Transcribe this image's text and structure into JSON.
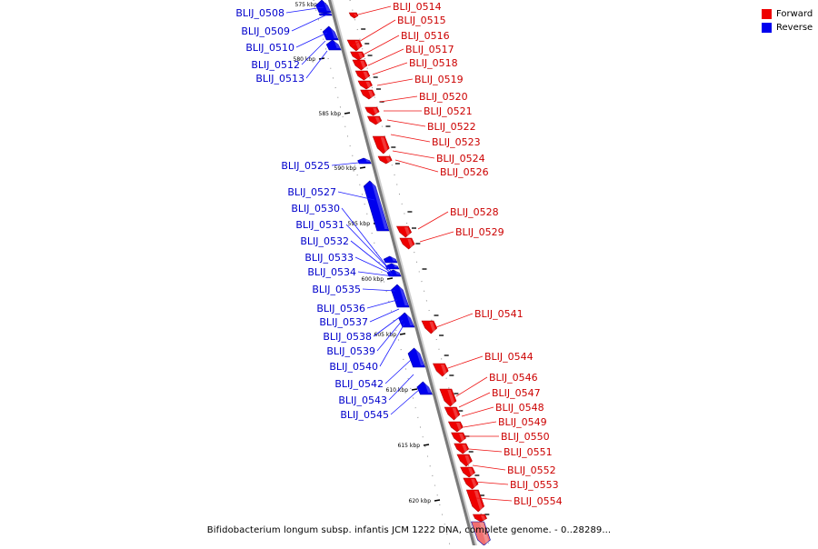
{
  "caption": "Bifidobacterium longum subsp. infantis JCM 1222 DNA, complete genome. - 0..28289...",
  "legend": {
    "items": [
      {
        "label": "Forward",
        "color": "#ee0000"
      },
      {
        "label": "Reverse",
        "color": "#0000ee"
      }
    ]
  },
  "scale_ticks": [
    "575 kbp",
    "580 kbp",
    "585 kbp",
    "590 kbp",
    "595 kbp",
    "600 kbp",
    "605 kbp",
    "610 kbp",
    "615 kbp",
    "620 kbp"
  ],
  "reverse_genes": [
    "BLIJ_0508",
    "BLIJ_0509",
    "BLIJ_0510",
    "BLIJ_0512",
    "BLIJ_0513",
    "BLIJ_0525",
    "BLIJ_0527",
    "BLIJ_0530",
    "BLIJ_0531",
    "BLIJ_0532",
    "BLIJ_0533",
    "BLIJ_0534",
    "BLIJ_0535",
    "BLIJ_0536",
    "BLIJ_0537",
    "BLIJ_0538",
    "BLIJ_0539",
    "BLIJ_0540",
    "BLIJ_0542",
    "BLIJ_0543",
    "BLIJ_0545"
  ],
  "forward_genes": [
    "BLIJ_0514",
    "BLIJ_0515",
    "BLIJ_0516",
    "BLIJ_0517",
    "BLIJ_0518",
    "BLIJ_0519",
    "BLIJ_0520",
    "BLIJ_0521",
    "BLIJ_0522",
    "BLIJ_0523",
    "BLIJ_0524",
    "BLIJ_0526",
    "BLIJ_0528",
    "BLIJ_0529",
    "BLIJ_0541",
    "BLIJ_0544",
    "BLIJ_0546",
    "BLIJ_0547",
    "BLIJ_0548",
    "BLIJ_0549",
    "BLIJ_0550",
    "BLIJ_0551",
    "BLIJ_0552",
    "BLIJ_0553",
    "BLIJ_0554"
  ]
}
